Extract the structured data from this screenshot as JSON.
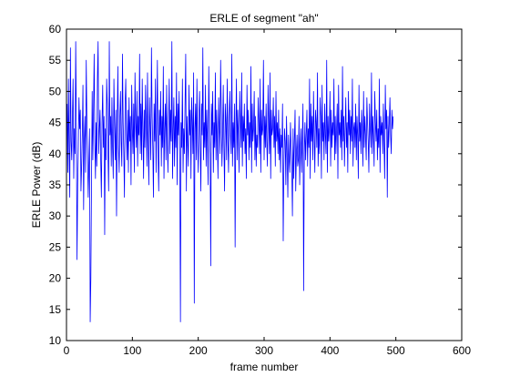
{
  "chart_data": {
    "type": "line",
    "title": "ERLE of segment \"ah\"",
    "xlabel": "frame number",
    "ylabel": "ERLE Power (dB)",
    "xlim": [
      0,
      600
    ],
    "ylim": [
      10,
      60
    ],
    "xticks": [
      0,
      100,
      200,
      300,
      400,
      500,
      600
    ],
    "yticks": [
      10,
      15,
      20,
      25,
      30,
      35,
      40,
      45,
      50,
      55,
      60
    ],
    "grid": false,
    "legend": "none",
    "line_color": "#0000ff",
    "series": [
      {
        "x_start": 1,
        "x_step": 1,
        "values": [
          48,
          37,
          52,
          41,
          33,
          57,
          42,
          39,
          46,
          52,
          36,
          44,
          40,
          58,
          45,
          23,
          35,
          41,
          49,
          44,
          47,
          34,
          38,
          43,
          51,
          31,
          42,
          46,
          37,
          55,
          45,
          40,
          33,
          38,
          44,
          13,
          20,
          35,
          50,
          39,
          47,
          56,
          42,
          36,
          45,
          38,
          52,
          58,
          40,
          44,
          47,
          39,
          33,
          45,
          51,
          41,
          46,
          27,
          44,
          39,
          52,
          48,
          40,
          34,
          58,
          43,
          46,
          38,
          49,
          41,
          36,
          52,
          45,
          39,
          47,
          30,
          44,
          54,
          41,
          37,
          46,
          50,
          42,
          38,
          56,
          45,
          40,
          33,
          48,
          52,
          43,
          39,
          47,
          37,
          49,
          42,
          46,
          35,
          51,
          44,
          40,
          48,
          37,
          53,
          45,
          41,
          50,
          38,
          46,
          43,
          56,
          40,
          48,
          39,
          52,
          44,
          36,
          47,
          41,
          51,
          45,
          38,
          53,
          42,
          35,
          49,
          44,
          39,
          57,
          46,
          41,
          33,
          48,
          42,
          52,
          37,
          45,
          55,
          40,
          34,
          47,
          43,
          50,
          38,
          46,
          41,
          54,
          36,
          44,
          48,
          39,
          51,
          43,
          37,
          45,
          52,
          40,
          47,
          42,
          58,
          36,
          44,
          49,
          38,
          46,
          41,
          53,
          35,
          48,
          43,
          50,
          39,
          13,
          45,
          41,
          52,
          37,
          44,
          40,
          48,
          56,
          34,
          46,
          42,
          38,
          51,
          43,
          47,
          36,
          49,
          45,
          40,
          53,
          16,
          44,
          48,
          39,
          52,
          42,
          37,
          46,
          50,
          41,
          34,
          48,
          43,
          57,
          39,
          45,
          41,
          51,
          38,
          47,
          42,
          35,
          54,
          44,
          40,
          22,
          48,
          43,
          50,
          37,
          45,
          41,
          53,
          39,
          47,
          42,
          36,
          49,
          44,
          40,
          55,
          46,
          38,
          43,
          51,
          41,
          34,
          48,
          45,
          39,
          52,
          42,
          37,
          46,
          50,
          43,
          40,
          56,
          38,
          45,
          41,
          48,
          25,
          44,
          52,
          39,
          47,
          43,
          37,
          50,
          45,
          41,
          53,
          38,
          46,
          42,
          48,
          40,
          44,
          36,
          51,
          43,
          47,
          39,
          45,
          41,
          54,
          37,
          48,
          42,
          44,
          50,
          39,
          46,
          38,
          43,
          41,
          49,
          45,
          40,
          52,
          37,
          47,
          43,
          44,
          55,
          39,
          46,
          41,
          48,
          42,
          38,
          51,
          45,
          40,
          53,
          36,
          47,
          43,
          44,
          49,
          41,
          46,
          38,
          50,
          42,
          45,
          40,
          47,
          39,
          44,
          37,
          43,
          41,
          48,
          26,
          38,
          44,
          42,
          35,
          46,
          40,
          33,
          43,
          39,
          37,
          45,
          41,
          38,
          30,
          44,
          36,
          42,
          47,
          34,
          40,
          43,
          38,
          39,
          46,
          35,
          41,
          44,
          37,
          42,
          48,
          18,
          40,
          45,
          39,
          43,
          47,
          38,
          44,
          41,
          52,
          36,
          48,
          42,
          46,
          39,
          50,
          43,
          37,
          47,
          45,
          41,
          53,
          38,
          44,
          40,
          49,
          46,
          36,
          51,
          42,
          45,
          39,
          48,
          43,
          40,
          55,
          37,
          46,
          42,
          44,
          50,
          38,
          47,
          41,
          45,
          43,
          52,
          39,
          46,
          40,
          44,
          48,
          36,
          51,
          43,
          45,
          41,
          47,
          39,
          54,
          42,
          46,
          38,
          44,
          49,
          41,
          45,
          37,
          50,
          43,
          47,
          40,
          46,
          42,
          52,
          38,
          44,
          45,
          41,
          48,
          39,
          46,
          43,
          36,
          51,
          42,
          45,
          40,
          47,
          44,
          38,
          50,
          41,
          46,
          43,
          39,
          49,
          45,
          42,
          37,
          48,
          44,
          41,
          53,
          40,
          46,
          43,
          38,
          50,
          45,
          42,
          47,
          39,
          44,
          41,
          52,
          37,
          46,
          43,
          45,
          40,
          48,
          42,
          36,
          51,
          44,
          47,
          33,
          46,
          41,
          45,
          49,
          43,
          40,
          47,
          44,
          46
        ]
      }
    ]
  }
}
